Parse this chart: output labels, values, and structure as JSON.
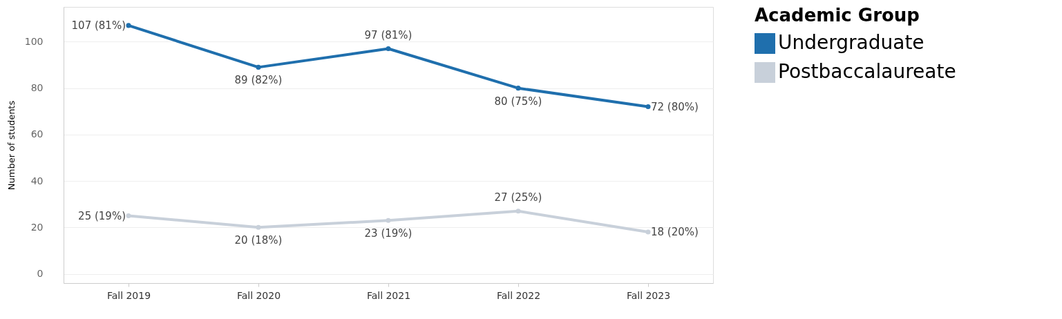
{
  "chart_data": {
    "type": "line",
    "ylabel": "Number of students",
    "legend_title": "Academic Group",
    "categories": [
      "Fall 2019",
      "Fall 2020",
      "Fall 2021",
      "Fall 2022",
      "Fall 2023"
    ],
    "series": [
      {
        "name": "Undergraduate",
        "color": "#1f6fad",
        "values": [
          107,
          89,
          97,
          80,
          72
        ],
        "value_labels": [
          "107 (81%)",
          "89 (82%)",
          "97 (81%)",
          "80 (75%)",
          "72 (80%)"
        ]
      },
      {
        "name": "Postbaccalaureate",
        "color": "#c8d0da",
        "values": [
          25,
          20,
          23,
          27,
          18
        ],
        "value_labels": [
          "25 (19%)",
          "20 (18%)",
          "23 (19%)",
          "27 (25%)",
          "18 (20%)"
        ]
      }
    ],
    "ylim": [
      -4,
      115
    ],
    "yticks": [
      0,
      20,
      40,
      60,
      80,
      100
    ],
    "grid": "y",
    "legend": "right",
    "marker": "circle",
    "line_style": "solid"
  }
}
